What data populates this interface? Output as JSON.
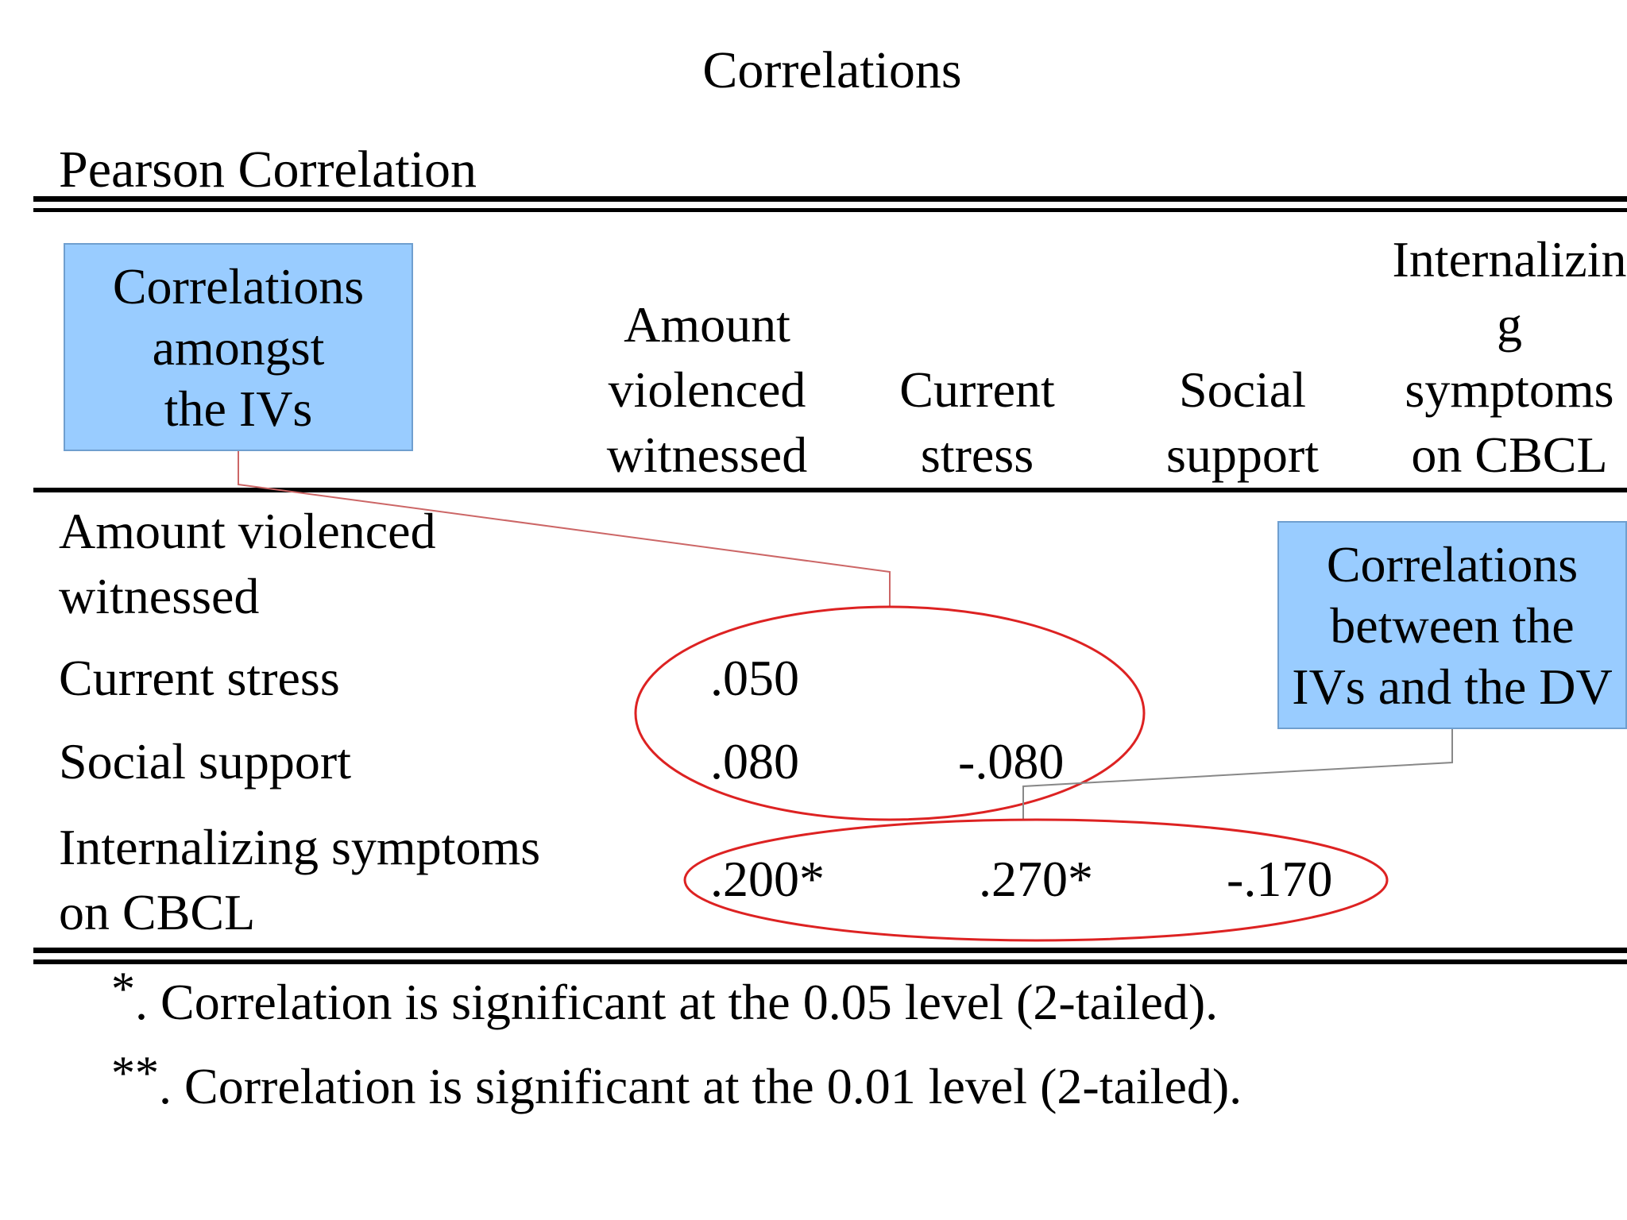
{
  "table": {
    "title": "Correlations",
    "subtitle": "Pearson Correlation",
    "columns": [
      "Amount\nviolenced\nwitnessed",
      "Current\nstress",
      "Social\nsupport",
      "Internalizin\ng\nsymptoms\non CBCL"
    ],
    "rows": [
      {
        "label": "Amount violenced\nwitnessed",
        "values": [
          "",
          "",
          "",
          ""
        ]
      },
      {
        "label": "Current stress",
        "values": [
          ".050",
          "",
          "",
          ""
        ]
      },
      {
        "label": "Social support",
        "values": [
          ".080",
          "-.080",
          "",
          ""
        ]
      },
      {
        "label": "Internalizing symptoms\non CBCL",
        "values": [
          ".200*",
          ".270*",
          "-.170",
          ""
        ]
      }
    ],
    "footnotes": [
      {
        "mark": "*",
        "text": ". Correlation is significant at the 0.05 level (2-tailed)."
      },
      {
        "mark": "**",
        "text": ". Correlation is significant at the 0.01 level (2-tailed)."
      }
    ]
  },
  "callouts": {
    "ivs": "Correlations\namongst\nthe IVs",
    "iv_dv": "Correlations\nbetween the\nIVs and the DV"
  },
  "colors": {
    "callout_fill": "#99ccff",
    "ellipse_stroke": "#dd2222",
    "leader_line": "#cc6666"
  }
}
